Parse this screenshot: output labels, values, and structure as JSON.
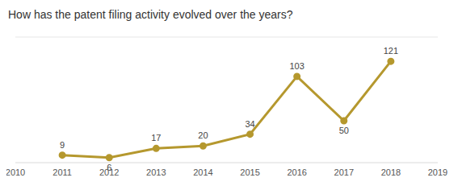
{
  "chart_data": {
    "type": "line",
    "title": "How has the patent filing activity evolved over the years?",
    "x": [
      2011,
      2012,
      2013,
      2014,
      2015,
      2016,
      2017,
      2018
    ],
    "values": [
      9,
      6,
      17,
      20,
      34,
      103,
      50,
      121
    ],
    "color": "#b5982e",
    "xlim": [
      2010,
      2019
    ],
    "xticks": [
      2010,
      2011,
      2012,
      2013,
      2014,
      2015,
      2016,
      2017,
      2018,
      2019
    ],
    "ylim": [
      0,
      150
    ],
    "yticks": [
      0,
      50,
      100,
      150
    ],
    "grid": true,
    "data_labels": true,
    "tick_labels": "x",
    "marker": "circle"
  }
}
